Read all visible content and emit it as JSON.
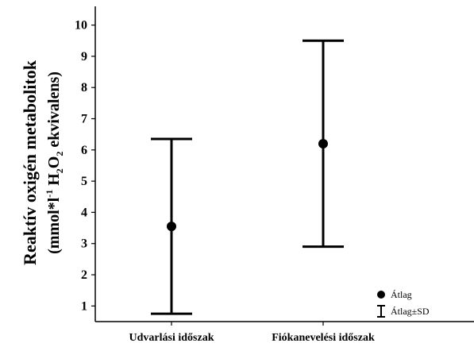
{
  "chart_data": {
    "type": "errorbar",
    "ylabel_line1": "Reaktív oxigén metabolitok",
    "ylabel_line2": {
      "open": "(mmol*l",
      "sup": "-1",
      "mid": " H",
      "sub1": "2",
      "mid2": "O",
      "sub2": "2",
      "close": " ekvivalens)"
    },
    "ylim": [
      0.5,
      10.6
    ],
    "yticks": [
      1,
      2,
      3,
      4,
      5,
      6,
      7,
      8,
      9,
      10
    ],
    "categories": [
      "Udvarlási időszak",
      "Fiókanevelési időszak"
    ],
    "series": [
      {
        "name": "Átlag",
        "values": [
          3.55,
          6.2
        ]
      },
      {
        "name": "Átlag±SD",
        "lower": [
          0.75,
          2.9
        ],
        "upper": [
          6.35,
          9.5
        ]
      }
    ],
    "legend": {
      "position": "bottom-right",
      "items": [
        "Átlag",
        "Átlag±SD"
      ]
    },
    "grid": false
  }
}
